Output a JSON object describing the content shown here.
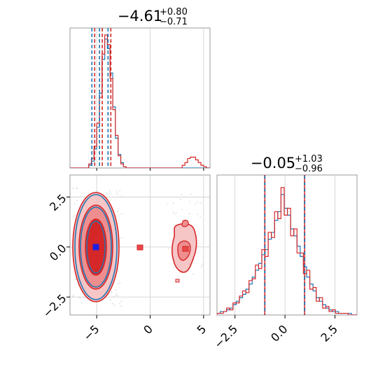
{
  "chart_data": {
    "type": "corner",
    "params": [
      {
        "title_main": "−4.61",
        "title_plus": "+0.80",
        "title_minus": "−0.71",
        "median": -4.61,
        "q16": -5.32,
        "q84": -3.81
      },
      {
        "title_main": "−0.05",
        "title_plus": "+1.03",
        "title_minus": "−0.96",
        "median": -0.05,
        "q16": -1.01,
        "q84": 0.98
      }
    ],
    "x0_range": [
      -7.5,
      5.6
    ],
    "x1_range": [
      -3.4,
      3.6
    ],
    "x0_ticks": [
      {
        "value": -5,
        "label": "−5"
      },
      {
        "value": 0,
        "label": "0"
      },
      {
        "value": 5,
        "label": "5"
      }
    ],
    "x1_ticks": [
      {
        "value": -2.5,
        "label": "−2.5"
      },
      {
        "value": 0,
        "label": "0.0"
      },
      {
        "value": 2.5,
        "label": "2.5"
      }
    ],
    "series_colors": {
      "blue": "#1f77b4",
      "red": "#d62728"
    },
    "quantile_line_colors": {
      "blue": "#1f77b4",
      "red": "#d62728"
    },
    "hist_x0": {
      "bin_edges_start": -7.5,
      "bin_width": 0.25,
      "blue": [
        0,
        0,
        0,
        0,
        0,
        0,
        0,
        2,
        5,
        14,
        30,
        55,
        80,
        95,
        88,
        70,
        45,
        22,
        10,
        4,
        1,
        0,
        0,
        0,
        0,
        0,
        0,
        0,
        0,
        0,
        0,
        0,
        0,
        0,
        0,
        0,
        0,
        0,
        0,
        0,
        0,
        0,
        0,
        0,
        0,
        0,
        0,
        0,
        0,
        0,
        0,
        0,
        0
      ],
      "red": [
        0,
        0,
        0,
        0,
        0,
        0,
        0,
        3,
        7,
        16,
        33,
        52,
        84,
        98,
        91,
        66,
        43,
        24,
        9,
        3,
        1,
        0,
        0,
        0,
        0,
        0,
        0,
        0,
        0,
        0,
        0,
        0,
        0,
        0,
        0,
        0,
        0,
        0,
        0,
        0,
        0,
        0,
        2,
        4,
        7,
        8,
        8,
        6,
        4,
        2,
        1,
        0,
        0
      ]
    },
    "hist_x1": {
      "bin_edges_start": -3.4,
      "bin_width": 0.16,
      "blue": [
        1,
        2,
        2,
        3,
        4,
        6,
        8,
        10,
        12,
        15,
        18,
        22,
        26,
        30,
        35,
        38,
        44,
        48,
        55,
        60,
        70,
        62,
        58,
        50,
        46,
        40,
        34,
        28,
        22,
        18,
        14,
        10,
        8,
        6,
        4,
        3,
        2,
        2,
        1,
        1,
        1,
        1,
        0,
        0
      ],
      "red": [
        1,
        1,
        2,
        4,
        3,
        7,
        7,
        11,
        14,
        13,
        20,
        21,
        29,
        27,
        38,
        34,
        48,
        45,
        60,
        56,
        74,
        58,
        62,
        46,
        50,
        36,
        36,
        24,
        26,
        15,
        16,
        8,
        10,
        4,
        5,
        2,
        3,
        1,
        1,
        1,
        1,
        0,
        0,
        0
      ]
    }
  }
}
